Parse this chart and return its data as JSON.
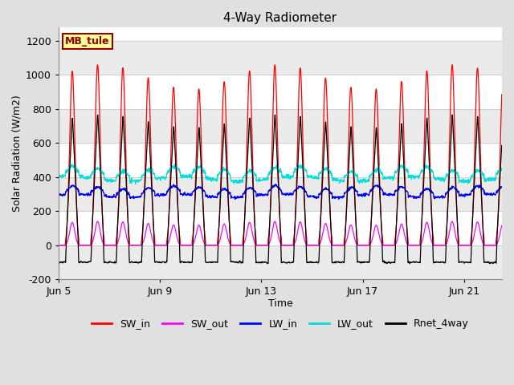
{
  "title": "4-Way Radiometer",
  "xlabel": "Time",
  "ylabel": "Solar Radiation (W/m2)",
  "ylim": [
    -200,
    1280
  ],
  "yticks": [
    -200,
    0,
    200,
    400,
    600,
    800,
    1000,
    1200
  ],
  "xtick_labels": [
    "Jun 5",
    "Jun 9",
    "Jun 13",
    "Jun 17",
    "Jun 21"
  ],
  "xtick_days": [
    0,
    4,
    8,
    12,
    16
  ],
  "station_label": "MB_tule",
  "station_label_color": "#8B0000",
  "station_label_bg": "#FFFF99",
  "legend_entries": [
    "SW_in",
    "SW_out",
    "LW_in",
    "LW_out",
    "Rnet_4way"
  ],
  "line_colors": [
    "#FF0000",
    "#FF00FF",
    "#0000FF",
    "#00DDDD",
    "#000000"
  ],
  "figure_bg_color": "#E0E0E0",
  "plot_bg_color": "#FFFFFF",
  "n_days": 17.5,
  "SW_in_peak": 1040,
  "SW_out_peak": 140,
  "LW_in_base": 290,
  "LW_in_daytime_bump": 50,
  "LW_out_base": 390,
  "LW_out_daytime_bump": 60,
  "Rnet_peak": 790,
  "Rnet_night": -100,
  "figsize": [
    6.4,
    4.8
  ],
  "dpi": 100
}
